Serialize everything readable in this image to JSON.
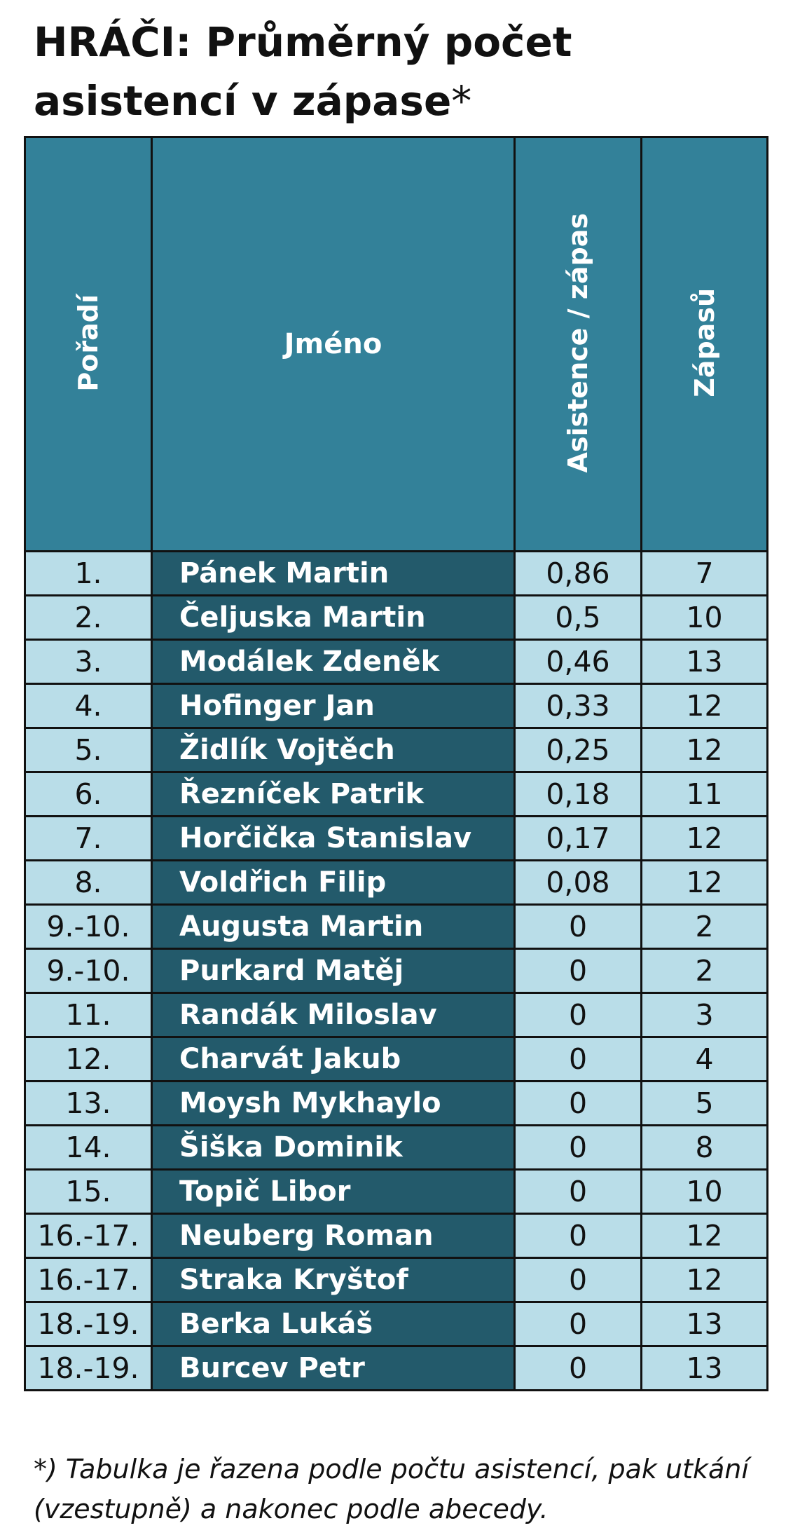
{
  "title": {
    "main": "HRÁČI: Průměrný počet asistencí v zápase",
    "asterisk": "*"
  },
  "chart_data": {
    "type": "table",
    "columns": [
      "Pořadí",
      "Jméno",
      "Asistence / zápas",
      "Zápasů"
    ],
    "rows": [
      {
        "rank": "1.",
        "name": "Pánek Martin",
        "assists": "0,86",
        "games": "7"
      },
      {
        "rank": "2.",
        "name": "Čeljuska Martin",
        "assists": "0,5",
        "games": "10"
      },
      {
        "rank": "3.",
        "name": "Modálek Zdeněk",
        "assists": "0,46",
        "games": "13"
      },
      {
        "rank": "4.",
        "name": "Hofinger Jan",
        "assists": "0,33",
        "games": "12"
      },
      {
        "rank": "5.",
        "name": "Židlík Vojtěch",
        "assists": "0,25",
        "games": "12"
      },
      {
        "rank": "6.",
        "name": "Řezníček Patrik",
        "assists": "0,18",
        "games": "11"
      },
      {
        "rank": "7.",
        "name": "Horčička Stanislav",
        "assists": "0,17",
        "games": "12"
      },
      {
        "rank": "8.",
        "name": "Voldřich Filip",
        "assists": "0,08",
        "games": "12"
      },
      {
        "rank": "9.-10.",
        "name": "Augusta Martin",
        "assists": "0",
        "games": "2"
      },
      {
        "rank": "9.-10.",
        "name": "Purkard Matěj",
        "assists": "0",
        "games": "2"
      },
      {
        "rank": "11.",
        "name": "Randák Miloslav",
        "assists": "0",
        "games": "3"
      },
      {
        "rank": "12.",
        "name": "Charvát Jakub",
        "assists": "0",
        "games": "4"
      },
      {
        "rank": "13.",
        "name": "Moysh Mykhaylo",
        "assists": "0",
        "games": "5"
      },
      {
        "rank": "14.",
        "name": "Šiška Dominik",
        "assists": "0",
        "games": "8"
      },
      {
        "rank": "15.",
        "name": "Topič Libor",
        "assists": "0",
        "games": "10"
      },
      {
        "rank": "16.-17.",
        "name": "Neuberg Roman",
        "assists": "0",
        "games": "12"
      },
      {
        "rank": "16.-17.",
        "name": "Straka Kryštof",
        "assists": "0",
        "games": "12"
      },
      {
        "rank": "18.-19.",
        "name": "Berka Lukáš",
        "assists": "0",
        "games": "13"
      },
      {
        "rank": "18.-19.",
        "name": "Burcev Petr",
        "assists": "0",
        "games": "13"
      }
    ]
  },
  "footnote": "*) Tabulka je řazena podle počtu asistencí, pak utkání (vzestupně) a nakonec podle abecedy.",
  "colors": {
    "header_bg": "#338199",
    "name_col_bg": "#235a6b",
    "cell_bg": "#b9dde8",
    "border": "#111111"
  }
}
